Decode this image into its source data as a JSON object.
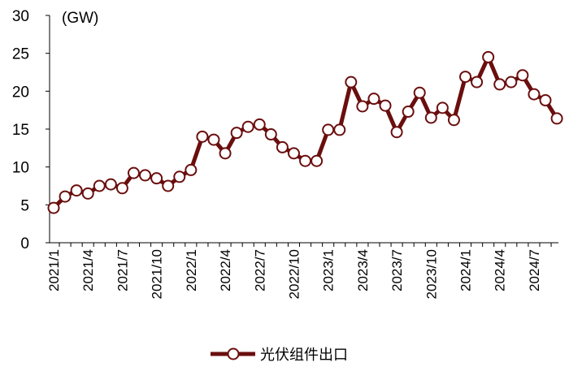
{
  "chart_data": {
    "type": "line",
    "unit_label": "(GW)",
    "ylim": [
      0,
      30
    ],
    "yticks": [
      0,
      5,
      10,
      15,
      20,
      25,
      30
    ],
    "x": [
      "2021/1",
      "2021/2",
      "2021/3",
      "2021/4",
      "2021/5",
      "2021/6",
      "2021/7",
      "2021/8",
      "2021/9",
      "2021/10",
      "2021/11",
      "2021/12",
      "2022/1",
      "2022/2",
      "2022/3",
      "2022/4",
      "2022/5",
      "2022/6",
      "2022/7",
      "2022/8",
      "2022/9",
      "2022/10",
      "2022/11",
      "2022/12",
      "2023/1",
      "2023/2",
      "2023/3",
      "2023/4",
      "2023/5",
      "2023/6",
      "2023/7",
      "2023/8",
      "2023/9",
      "2023/10",
      "2023/11",
      "2023/12",
      "2024/1",
      "2024/2",
      "2024/3",
      "2024/4",
      "2024/5",
      "2024/6",
      "2024/7",
      "2024/8",
      "2024/9"
    ],
    "xtick_labels": [
      "2021/1",
      "2021/4",
      "2021/7",
      "2021/10",
      "2022/1",
      "2022/4",
      "2022/7",
      "2022/10",
      "2023/1",
      "2023/4",
      "2023/7",
      "2023/10",
      "2024/1",
      "2024/4",
      "2024/7"
    ],
    "grid": false,
    "legend_position": "bottom",
    "series": [
      {
        "name": "光伏组件出口",
        "color": "#6b0e0e",
        "values": [
          4.6,
          6.1,
          6.9,
          6.5,
          7.5,
          7.7,
          7.2,
          9.2,
          8.9,
          8.5,
          7.5,
          8.7,
          9.6,
          14.0,
          13.6,
          11.8,
          14.5,
          15.3,
          15.6,
          14.3,
          12.6,
          11.8,
          10.8,
          10.8,
          14.9,
          14.9,
          21.2,
          18.0,
          19.0,
          18.1,
          14.6,
          17.3,
          19.8,
          16.5,
          17.8,
          16.2,
          21.9,
          21.2,
          24.5,
          20.9,
          21.2,
          22.1,
          19.6,
          18.8,
          16.4
        ]
      }
    ]
  }
}
